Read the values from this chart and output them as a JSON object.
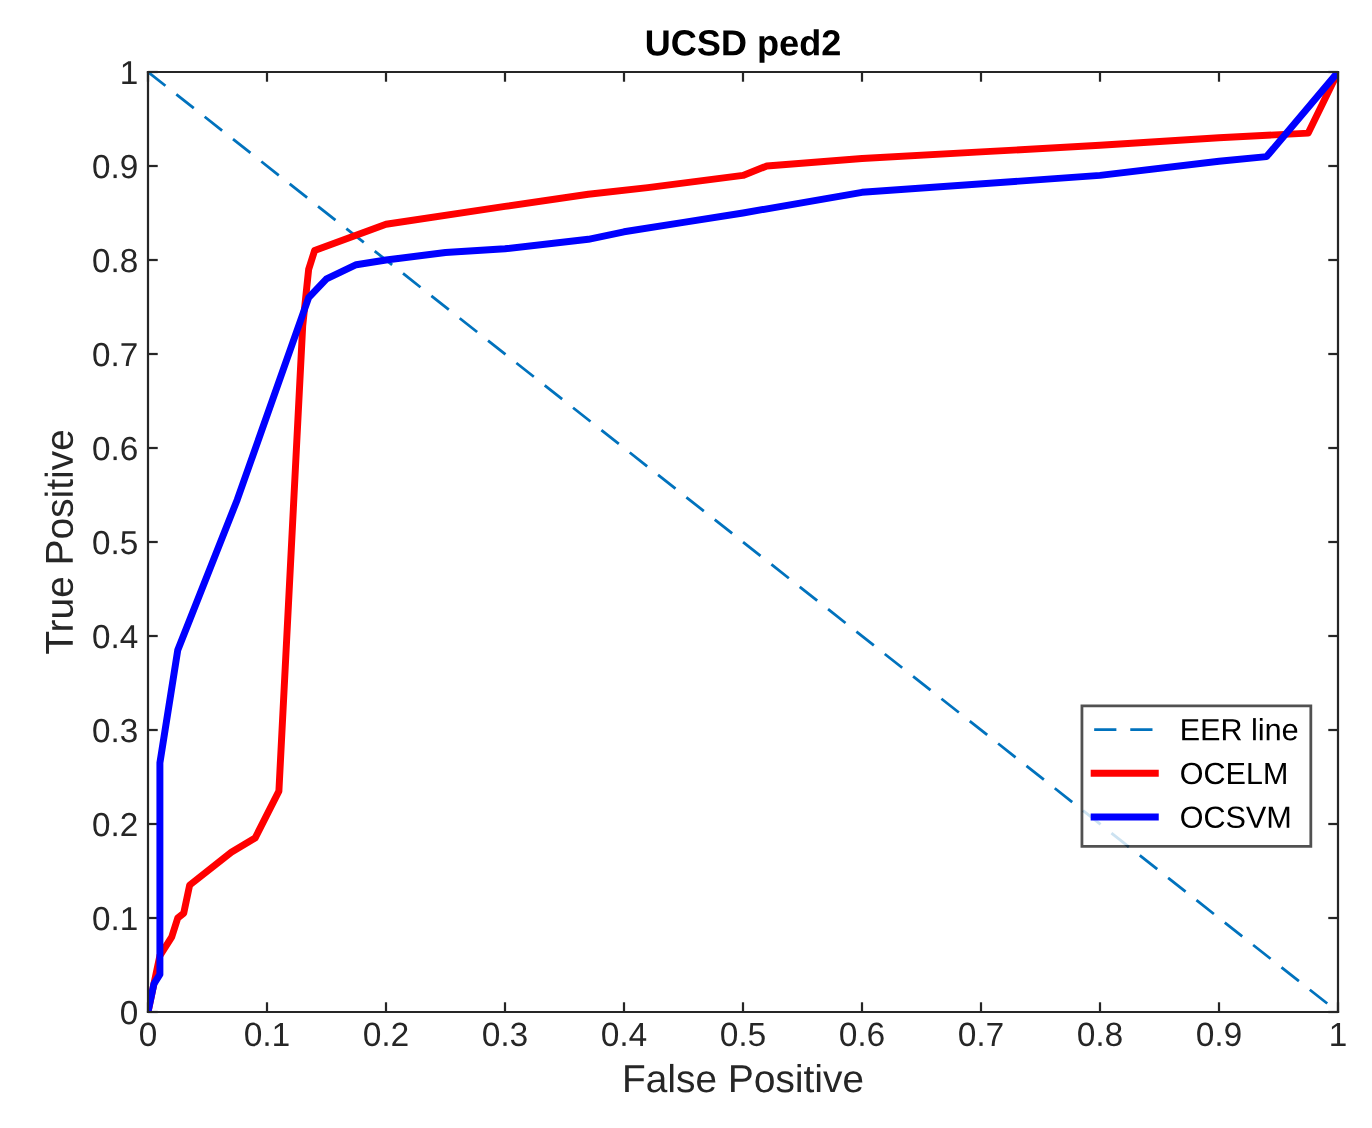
{
  "chart_data": {
    "type": "line",
    "title": "UCSD ped2",
    "xlabel": "False Positive",
    "ylabel": "True Positive",
    "xlim": [
      0,
      1
    ],
    "ylim": [
      0,
      1
    ],
    "xticks": [
      0,
      0.1,
      0.2,
      0.3,
      0.4,
      0.5,
      0.6,
      0.7,
      0.8,
      0.9,
      1
    ],
    "yticks": [
      0,
      0.1,
      0.2,
      0.3,
      0.4,
      0.5,
      0.6,
      0.7,
      0.8,
      0.9,
      1
    ],
    "grid": false,
    "legend": "bottom right",
    "marker": "none",
    "series": [
      {
        "name": "EER line",
        "color": "#0072bd",
        "line_style": "dashed",
        "x": [
          0,
          1
        ],
        "values": [
          1,
          0
        ]
      },
      {
        "name": "OCELM",
        "color": "#ff0000",
        "line_style": "solid",
        "x": [
          0,
          0.005,
          0.01,
          0.02,
          0.025,
          0.03,
          0.035,
          0.07,
          0.09,
          0.11,
          0.13,
          0.135,
          0.14,
          0.2,
          0.3,
          0.37,
          0.42,
          0.5,
          0.52,
          0.6,
          0.7,
          0.8,
          0.9,
          0.975,
          1
        ],
        "values": [
          0,
          0.03,
          0.06,
          0.08,
          0.1,
          0.105,
          0.135,
          0.17,
          0.185,
          0.235,
          0.73,
          0.79,
          0.81,
          0.838,
          0.857,
          0.87,
          0.877,
          0.89,
          0.9,
          0.908,
          0.915,
          0.922,
          0.93,
          0.935,
          1
        ]
      },
      {
        "name": "OCSVM",
        "color": "#0000ff",
        "line_style": "solid",
        "x": [
          0,
          0.005,
          0.01,
          0.01,
          0.025,
          0.075,
          0.135,
          0.15,
          0.175,
          0.2,
          0.25,
          0.3,
          0.37,
          0.4,
          0.45,
          0.5,
          0.6,
          0.8,
          0.9,
          0.94,
          1
        ],
        "values": [
          0,
          0.03,
          0.04,
          0.265,
          0.385,
          0.545,
          0.76,
          0.78,
          0.795,
          0.8,
          0.808,
          0.812,
          0.822,
          0.83,
          0.84,
          0.85,
          0.872,
          0.89,
          0.905,
          0.91,
          1
        ]
      }
    ]
  }
}
